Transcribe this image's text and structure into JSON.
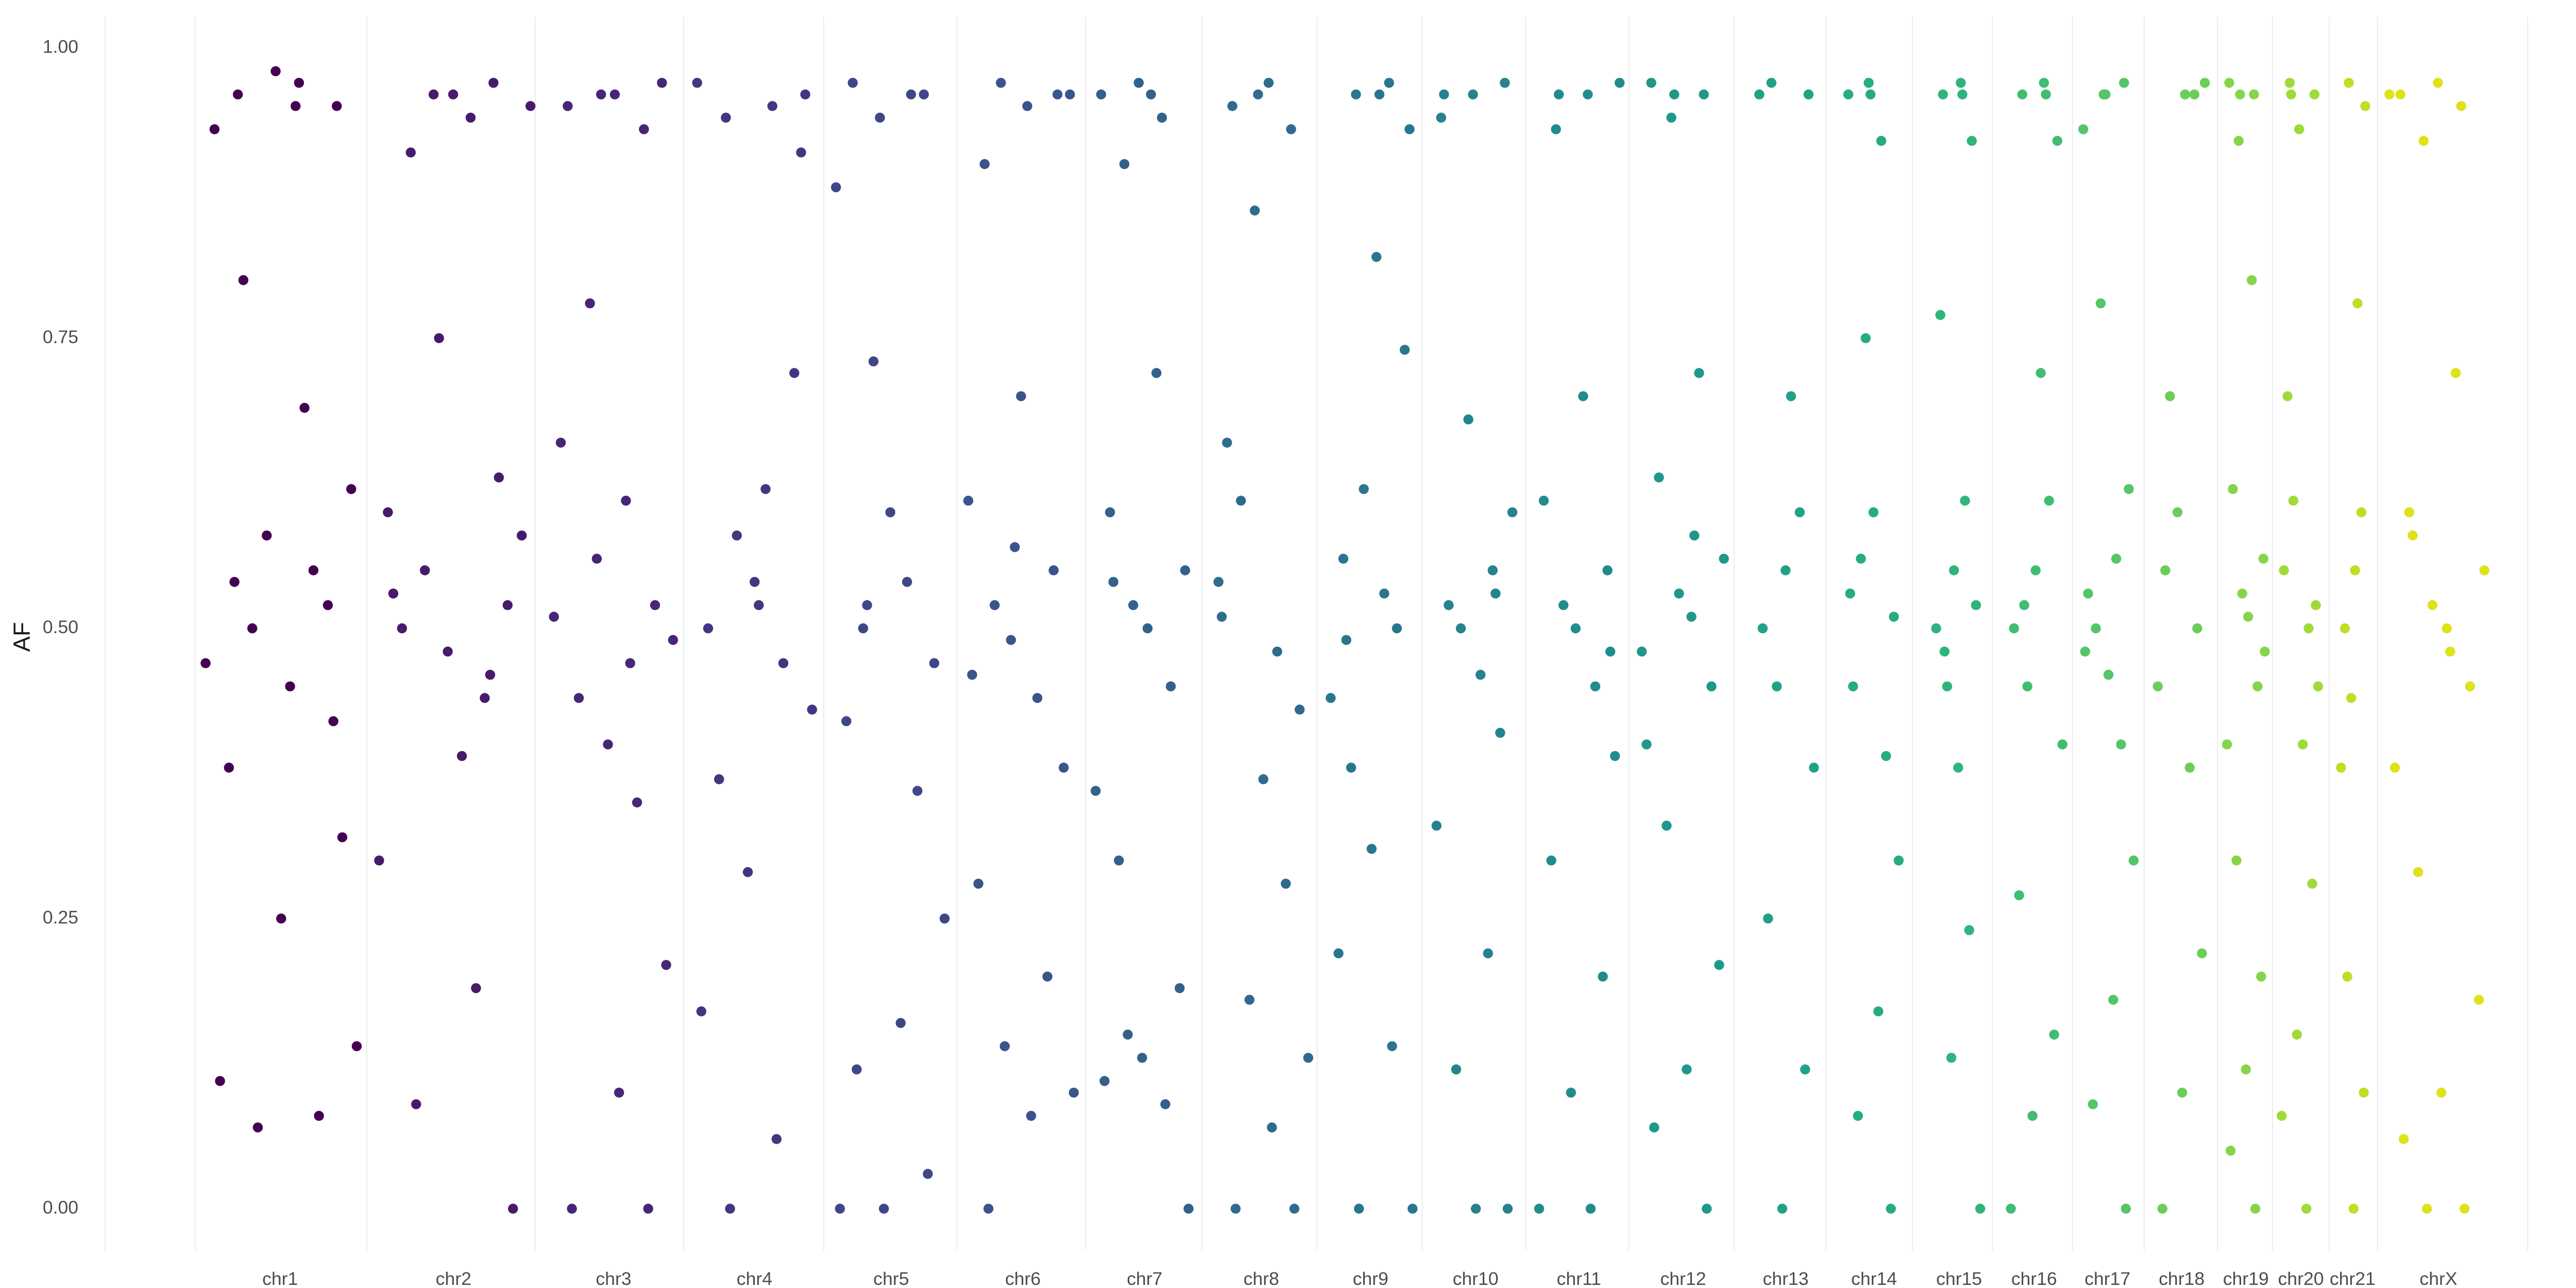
{
  "chart_data": {
    "type": "scatter",
    "y_label": "AF",
    "ylim": [
      -0.036,
      1.027
    ],
    "yticks": [
      {
        "value": 0,
        "label": "0.00"
      },
      {
        "value": 0.25,
        "label": "0.25"
      },
      {
        "value": 0.5,
        "label": "0.50"
      },
      {
        "value": 0.75,
        "label": "0.75"
      },
      {
        "value": 1,
        "label": "1.00"
      }
    ],
    "series": [
      {
        "name": "chr1",
        "color": "#440154",
        "values": [
          0.97,
          0.96,
          0.95,
          0.98,
          0.93,
          0.55,
          0.5,
          0.62,
          0.45,
          0.38,
          0.52,
          0.58,
          0.47,
          0.69,
          0.8,
          0.32,
          0.25,
          0.11,
          0.08,
          0.07,
          0.14,
          0.95,
          0.54,
          0.42
        ]
      },
      {
        "name": "chr2",
        "color": "#481a6c",
        "values": [
          0.97,
          0.96,
          0.95,
          0.94,
          0.91,
          0.52,
          0.48,
          0.6,
          0.44,
          0.55,
          0.58,
          0.39,
          0.5,
          0.63,
          0.75,
          0.3,
          0.19,
          0.09,
          0,
          0.96,
          0.53,
          0.46
        ]
      },
      {
        "name": "chr3",
        "color": "#482677",
        "values": [
          0.97,
          0.96,
          0.95,
          0.93,
          0.56,
          0.49,
          0.61,
          0.44,
          0.52,
          0.4,
          0.66,
          0.35,
          0.78,
          0.21,
          0.1,
          0,
          0,
          0.96,
          0.51,
          0.47
        ]
      },
      {
        "name": "chr4",
        "color": "#453581",
        "values": [
          0.97,
          0.95,
          0.94,
          0.91,
          0.54,
          0.5,
          0.47,
          0.58,
          0.43,
          0.62,
          0.37,
          0.72,
          0.29,
          0.17,
          0.06,
          0,
          0.96,
          0.52
        ]
      },
      {
        "name": "chr5",
        "color": "#3f4788",
        "values": [
          0.97,
          0.96,
          0.94,
          0.88,
          0.54,
          0.5,
          0.47,
          0.6,
          0.42,
          0.36,
          0.73,
          0.25,
          0.16,
          0.12,
          0.03,
          0,
          0,
          0.96,
          0.52
        ]
      },
      {
        "name": "chr6",
        "color": "#3a548c",
        "values": [
          0.97,
          0.96,
          0.95,
          0.9,
          0.55,
          0.49,
          0.61,
          0.44,
          0.52,
          0.38,
          0.7,
          0.28,
          0.2,
          0.14,
          0.1,
          0.08,
          0,
          0.96,
          0.57,
          0.46
        ]
      },
      {
        "name": "chr7",
        "color": "#34608d",
        "values": [
          0.97,
          0.96,
          0.94,
          0.9,
          0.55,
          0.5,
          0.6,
          0.45,
          0.52,
          0.36,
          0.72,
          0.3,
          0.19,
          0.13,
          0.11,
          0.09,
          0.15,
          0,
          0.96,
          0.54
        ]
      },
      {
        "name": "chr8",
        "color": "#2f6b8e",
        "values": [
          0.97,
          0.95,
          0.93,
          0.86,
          0.54,
          0.48,
          0.61,
          0.43,
          0.37,
          0.66,
          0.28,
          0.18,
          0.13,
          0.07,
          0,
          0,
          0.96,
          0.51
        ]
      },
      {
        "name": "chr9",
        "color": "#2a768e",
        "values": [
          0.97,
          0.96,
          0.93,
          0.82,
          0.56,
          0.5,
          0.62,
          0.44,
          0.53,
          0.38,
          0.74,
          0.31,
          0.22,
          0.14,
          0,
          0,
          0.96,
          0.49
        ]
      },
      {
        "name": "chr10",
        "color": "#26828e",
        "values": [
          0.97,
          0.96,
          0.94,
          0.55,
          0.5,
          0.6,
          0.46,
          0.52,
          0.41,
          0.68,
          0.33,
          0.22,
          0.12,
          0,
          0,
          0.96,
          0.53
        ]
      },
      {
        "name": "chr11",
        "color": "#228c8d",
        "values": [
          0.97,
          0.96,
          0.93,
          0.55,
          0.5,
          0.61,
          0.45,
          0.52,
          0.39,
          0.7,
          0.3,
          0.2,
          0.1,
          0,
          0,
          0.96,
          0.48
        ]
      },
      {
        "name": "chr12",
        "color": "#1f988b",
        "values": [
          0.97,
          0.96,
          0.94,
          0.56,
          0.51,
          0.63,
          0.45,
          0.53,
          0.4,
          0.72,
          0.33,
          0.21,
          0.12,
          0.07,
          0,
          0.96,
          0.48,
          0.58
        ]
      },
      {
        "name": "chr13",
        "color": "#1ea386",
        "values": [
          0.97,
          0.96,
          0.55,
          0.5,
          0.6,
          0.45,
          0.38,
          0.7,
          0.25,
          0.12,
          0,
          0.96
        ]
      },
      {
        "name": "chr14",
        "color": "#25ac82",
        "values": [
          0.97,
          0.96,
          0.92,
          0.56,
          0.51,
          0.6,
          0.45,
          0.39,
          0.75,
          0.3,
          0.17,
          0.08,
          0,
          0.96,
          0.53
        ]
      },
      {
        "name": "chr15",
        "color": "#2fb47c",
        "values": [
          0.97,
          0.96,
          0.92,
          0.55,
          0.5,
          0.61,
          0.45,
          0.52,
          0.38,
          0.77,
          0.24,
          0.13,
          0,
          0.96,
          0.48
        ]
      },
      {
        "name": "chr16",
        "color": "#40bd72",
        "values": [
          0.97,
          0.96,
          0.92,
          0.55,
          0.5,
          0.61,
          0.45,
          0.4,
          0.72,
          0.27,
          0.15,
          0.08,
          0,
          0.96,
          0.52
        ]
      },
      {
        "name": "chr17",
        "color": "#54c568",
        "values": [
          0.97,
          0.96,
          0.93,
          0.56,
          0.5,
          0.62,
          0.46,
          0.53,
          0.4,
          0.78,
          0.3,
          0.18,
          0.09,
          0,
          0.96,
          0.48
        ]
      },
      {
        "name": "chr18",
        "color": "#6bcd5a",
        "values": [
          0.97,
          0.96,
          0.55,
          0.5,
          0.6,
          0.45,
          0.38,
          0.7,
          0.22,
          0.1,
          0,
          0.96
        ]
      },
      {
        "name": "chr19",
        "color": "#85d54a",
        "values": [
          0.97,
          0.96,
          0.92,
          0.56,
          0.51,
          0.62,
          0.45,
          0.53,
          0.4,
          0.8,
          0.3,
          0.2,
          0.12,
          0.05,
          0,
          0.96,
          0.48
        ]
      },
      {
        "name": "chr20",
        "color": "#a0da39",
        "values": [
          0.97,
          0.96,
          0.93,
          0.55,
          0.5,
          0.61,
          0.45,
          0.4,
          0.7,
          0.28,
          0.15,
          0.08,
          0,
          0.96,
          0.52
        ]
      },
      {
        "name": "chr21",
        "color": "#bddf26",
        "values": [
          0.97,
          0.95,
          0.55,
          0.5,
          0.6,
          0.44,
          0.38,
          0.78,
          0.2,
          0.1,
          0
        ]
      },
      {
        "name": "chrX",
        "color": "#dde318",
        "values": [
          0.97,
          0.96,
          0.95,
          0.92,
          0.55,
          0.5,
          0.6,
          0.45,
          0.52,
          0.38,
          0.72,
          0.29,
          0.18,
          0.1,
          0.06,
          0,
          0,
          0.96,
          0.48,
          0.58
        ]
      }
    ]
  }
}
